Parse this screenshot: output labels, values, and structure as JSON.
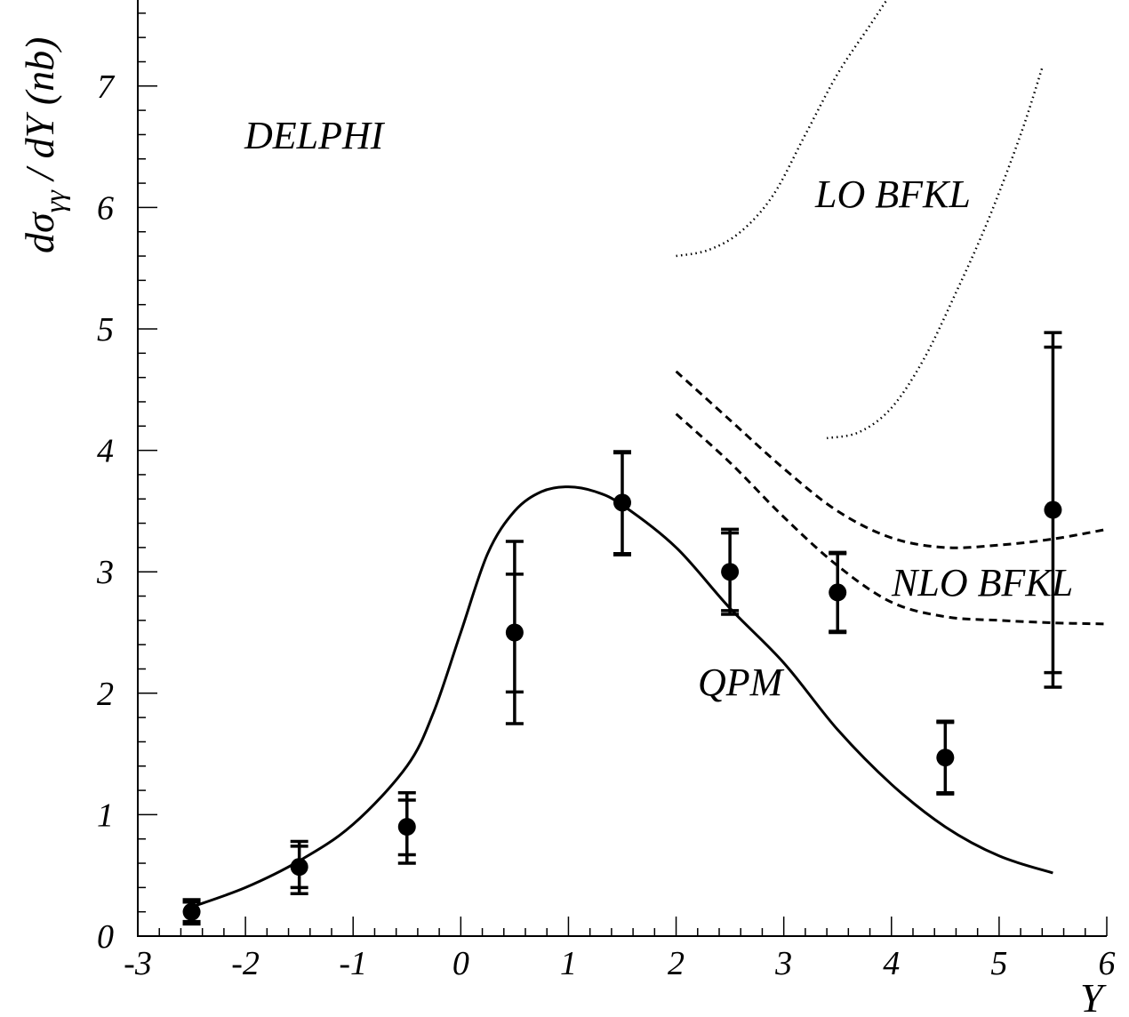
{
  "chart_data": {
    "type": "scatter",
    "xlabel": "Y",
    "ylabel": "dσγγ / dY (nb)",
    "ylabel_parts": {
      "main": "dσ",
      "sub": "γγ",
      "rest": " / dY (nb)"
    },
    "xlim": [
      -3,
      6
    ],
    "ylim": [
      0,
      7.7
    ],
    "x_major_ticks": [
      -3,
      -2,
      -1,
      0,
      1,
      2,
      3,
      4,
      5,
      6
    ],
    "x_tick_labels": [
      "-3",
      "-2",
      "-1",
      "0",
      "1",
      "2",
      "3",
      "4",
      "5",
      "6"
    ],
    "y_major_ticks": [
      0,
      1,
      2,
      3,
      4,
      5,
      6,
      7
    ],
    "y_tick_labels": [
      "0",
      "1",
      "2",
      "3",
      "4",
      "5",
      "6",
      "7"
    ],
    "grid": false,
    "annotations": {
      "experiment": "DELPHI",
      "lo_bfkl": "LO BFKL",
      "nlo_bfkl": "NLO BFKL",
      "qpm": "QPM"
    },
    "data_points": [
      {
        "x": -2.5,
        "y": 0.2,
        "stat": [
          0.12,
          0.28
        ],
        "total": [
          0.1,
          0.3
        ]
      },
      {
        "x": -1.5,
        "y": 0.57,
        "stat": [
          0.4,
          0.74
        ],
        "total": [
          0.35,
          0.78
        ]
      },
      {
        "x": -0.5,
        "y": 0.9,
        "stat": [
          0.67,
          1.12
        ],
        "total": [
          0.6,
          1.18
        ]
      },
      {
        "x": 0.5,
        "y": 2.5,
        "stat": [
          2.01,
          2.98
        ],
        "total": [
          1.75,
          3.25
        ]
      },
      {
        "x": 1.5,
        "y": 3.57,
        "stat": [
          3.15,
          3.98
        ],
        "total": [
          3.14,
          3.99
        ]
      },
      {
        "x": 2.5,
        "y": 3.0,
        "stat": [
          2.68,
          3.32
        ],
        "total": [
          2.65,
          3.35
        ]
      },
      {
        "x": 3.5,
        "y": 2.83,
        "stat": [
          2.51,
          3.15
        ],
        "total": [
          2.5,
          3.16
        ]
      },
      {
        "x": 4.5,
        "y": 1.47,
        "stat": [
          1.18,
          1.76
        ],
        "total": [
          1.17,
          1.77
        ]
      },
      {
        "x": 5.5,
        "y": 3.51,
        "stat": [
          2.17,
          4.85
        ],
        "total": [
          2.05,
          4.97
        ]
      }
    ],
    "series": [
      {
        "name": "QPM",
        "style": "solid",
        "x": [
          -2.5,
          -2.0,
          -1.5,
          -1.0,
          -0.5,
          -0.25,
          0.0,
          0.25,
          0.5,
          0.75,
          1.0,
          1.25,
          1.5,
          2.0,
          2.5,
          3.0,
          3.5,
          4.0,
          4.5,
          5.0,
          5.5
        ],
        "y": [
          0.24,
          0.4,
          0.62,
          0.92,
          1.4,
          1.85,
          2.5,
          3.15,
          3.5,
          3.66,
          3.7,
          3.66,
          3.55,
          3.2,
          2.7,
          2.25,
          1.7,
          1.25,
          0.9,
          0.66,
          0.52
        ]
      },
      {
        "name": "LO BFKL",
        "style": "dotted",
        "x": [
          2.0,
          2.3,
          2.6,
          2.9,
          3.2,
          3.5,
          3.8,
          3.95
        ],
        "y": [
          5.6,
          5.65,
          5.8,
          6.1,
          6.6,
          7.1,
          7.5,
          7.7
        ]
      },
      {
        "name": "LO BFKL",
        "style": "dotted",
        "x": [
          3.4,
          3.7,
          4.0,
          4.3,
          4.6,
          4.9,
          5.2,
          5.4
        ],
        "y": [
          4.1,
          4.15,
          4.35,
          4.75,
          5.3,
          5.9,
          6.6,
          7.15
        ]
      },
      {
        "name": "NLO BFKL",
        "style": "dashed",
        "x": [
          2.0,
          2.5,
          3.0,
          3.5,
          4.0,
          4.5,
          5.0,
          5.5,
          6.0
        ],
        "y": [
          4.65,
          4.25,
          3.85,
          3.5,
          3.28,
          3.2,
          3.22,
          3.27,
          3.35
        ]
      },
      {
        "name": "NLO BFKL",
        "style": "dashed",
        "x": [
          2.0,
          2.5,
          3.0,
          3.5,
          4.0,
          4.5,
          5.0,
          5.5,
          6.0
        ],
        "y": [
          4.3,
          3.9,
          3.45,
          3.05,
          2.75,
          2.63,
          2.6,
          2.58,
          2.57
        ]
      }
    ]
  },
  "colors": {
    "ink": "#000000",
    "background": "#ffffff"
  }
}
